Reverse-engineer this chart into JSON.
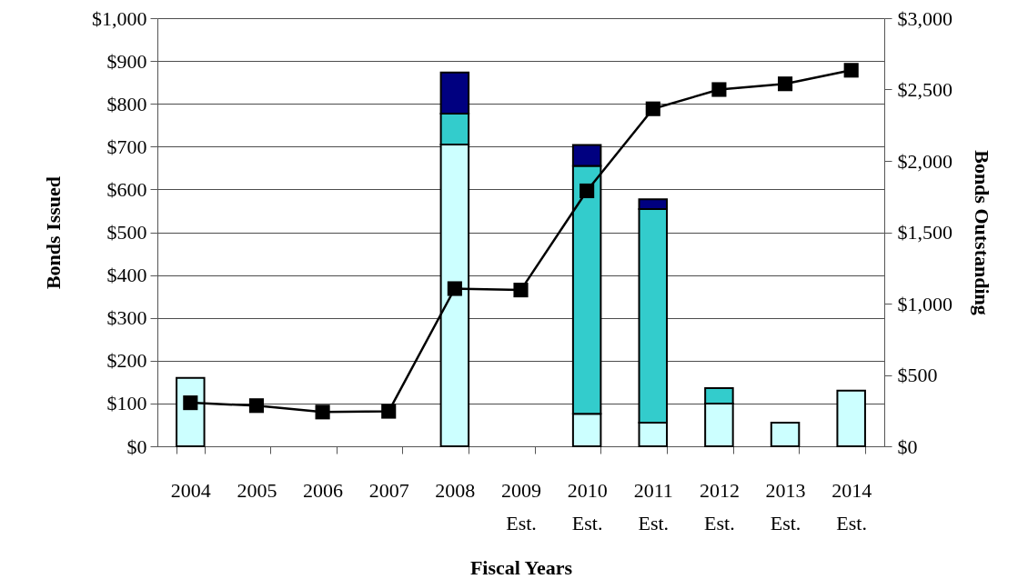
{
  "chart_data": {
    "type": "bar",
    "stacked": true,
    "xlabel": "Fiscal Years",
    "ylabel": "Bonds Issued",
    "y2label": "Bonds Outstanding",
    "categories": [
      "2004",
      "2005",
      "2006",
      "2007",
      "2008",
      "2009 Est.",
      "2010 Est.",
      "2011 Est.",
      "2012 Est.",
      "2013 Est.",
      "2014 Est."
    ],
    "series": [
      {
        "color": "#ccffff",
        "values": [
          160,
          null,
          null,
          null,
          705,
          null,
          76,
          55,
          100,
          55,
          130
        ]
      },
      {
        "color": "#33cccc",
        "values": [
          null,
          null,
          null,
          null,
          72,
          null,
          579,
          499,
          36,
          null,
          null
        ]
      },
      {
        "color": "#000080",
        "values": [
          null,
          null,
          null,
          null,
          96,
          null,
          49,
          23,
          null,
          null,
          null
        ]
      },
      {
        "type": "line",
        "axis": "y2",
        "color": "#000000",
        "marker": "square",
        "line_style": "solid",
        "values": [
          305,
          285,
          240,
          245,
          1105,
          1095,
          1790,
          2365,
          2500,
          2540,
          2635
        ]
      }
    ],
    "ylim": [
      0,
      1000
    ],
    "yticks": [
      {
        "value": 0,
        "label": "$0"
      },
      {
        "value": 100,
        "label": "$100"
      },
      {
        "value": 200,
        "label": "$200"
      },
      {
        "value": 300,
        "label": "$300"
      },
      {
        "value": 400,
        "label": "$400"
      },
      {
        "value": 500,
        "label": "$500"
      },
      {
        "value": 600,
        "label": "$600"
      },
      {
        "value": 700,
        "label": "$700"
      },
      {
        "value": 800,
        "label": "$800"
      },
      {
        "value": 900,
        "label": "$900"
      },
      {
        "value": 1000,
        "label": "$1,000"
      }
    ],
    "y2lim": [
      0,
      3000
    ],
    "y2ticks": [
      {
        "value": 0,
        "label": "$0"
      },
      {
        "value": 500,
        "label": "$500"
      },
      {
        "value": 1000,
        "label": "$1,000"
      },
      {
        "value": 1500,
        "label": "$1,500"
      },
      {
        "value": 2000,
        "label": "$2,000"
      },
      {
        "value": 2500,
        "label": "$2,500"
      },
      {
        "value": 3000,
        "label": "$3,000"
      }
    ],
    "grid": "y"
  }
}
